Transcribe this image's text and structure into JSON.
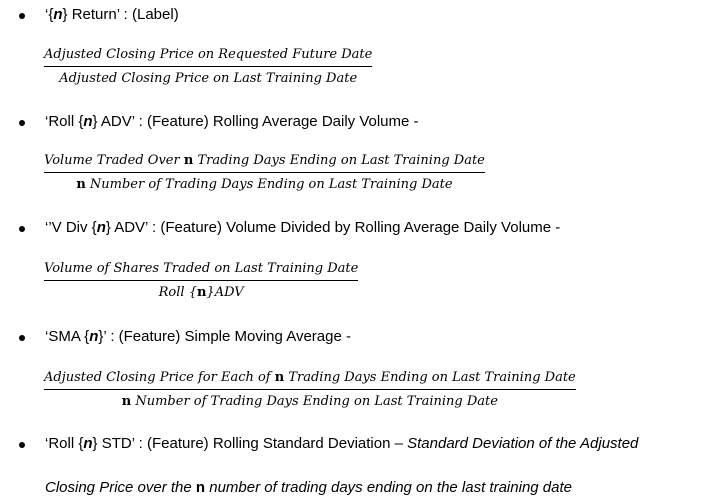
{
  "items": [
    {
      "prefix": "‘{",
      "n": "n",
      "suffix": "} Return’ : (Label)",
      "numerator": "Adjusted Closing Price on Requested Future Date",
      "denominator": "Adjusted Closing Price on Last Training Date"
    },
    {
      "prefix": "‘Roll {",
      "n": "n",
      "suffix": "} ADV’ : (Feature) Rolling Average Daily Volume -",
      "numerator_pre": "Volume Traded Over ",
      "numerator_n": "n",
      "numerator_post": " Trading Days Ending on Last Training Date",
      "denominator_n": "n",
      "denominator_post": " Number of Trading Days Ending on Last Training Date"
    },
    {
      "prefix": "‘’V Div {",
      "n": "n",
      "suffix": "} ADV’ : (Feature)  Volume Divided by Rolling Average Daily Volume -",
      "numerator": "Volume of Shares Traded on Last Training Date",
      "denominator_pre": "Roll {",
      "denominator_n": "n",
      "denominator_post": "}ADV"
    },
    {
      "prefix": "‘SMA {",
      "n": "n",
      "suffix": "}’ : (Feature)  Simple Moving Average -",
      "numerator_pre": "Adjusted Closing Price for Each of ",
      "numerator_n": "n",
      "numerator_post": " Trading Days Ending on Last Training Date",
      "denominator_n": "n",
      "denominator_post": " Number of Trading Days Ending on Last Training Date"
    },
    {
      "prefix": "‘Roll {",
      "n": "n",
      "suffix": "} STD’ : (Feature) Rolling Standard Deviation – ",
      "italic_tail": "Standard Deviation of the Adjusted",
      "cont_pre": "Closing Price over the ",
      "cont_n": "n",
      "cont_post": " number of trading days ending on the last training date"
    }
  ]
}
